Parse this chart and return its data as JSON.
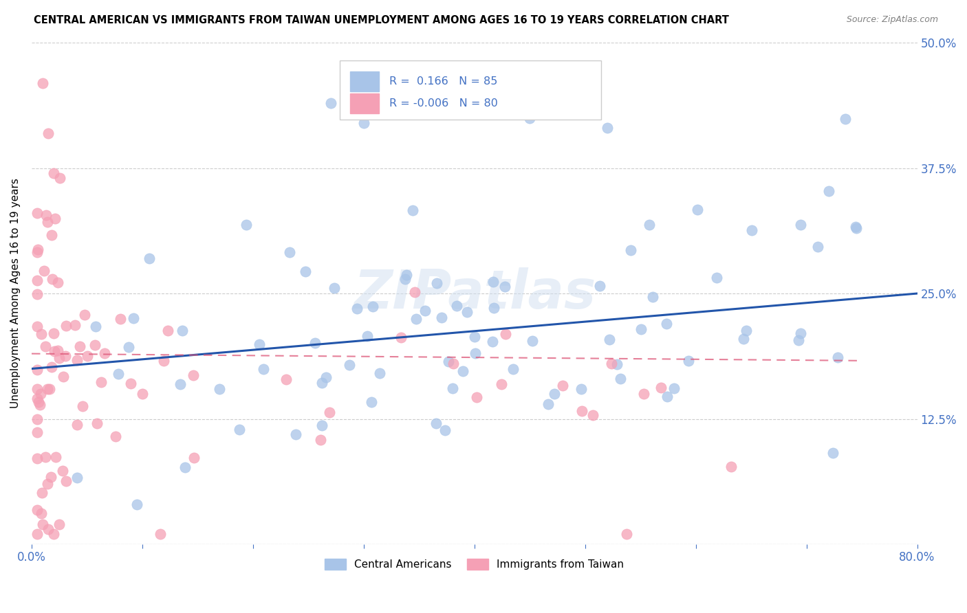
{
  "title": "CENTRAL AMERICAN VS IMMIGRANTS FROM TAIWAN UNEMPLOYMENT AMONG AGES 16 TO 19 YEARS CORRELATION CHART",
  "source_text": "Source: ZipAtlas.com",
  "ylabel": "Unemployment Among Ages 16 to 19 years",
  "xlim": [
    0.0,
    0.8
  ],
  "ylim": [
    0.0,
    0.5
  ],
  "ytick_positions": [
    0.0,
    0.125,
    0.25,
    0.375,
    0.5
  ],
  "ytick_labels": [
    "",
    "12.5%",
    "25.0%",
    "37.5%",
    "50.0%"
  ],
  "blue_color": "#a8c4e8",
  "blue_dark": "#2255aa",
  "pink_color": "#f5a0b5",
  "pink_dark": "#dd5577",
  "legend_R1": "0.166",
  "legend_N1": "85",
  "legend_R2": "-0.006",
  "legend_N2": "80",
  "legend_label1": "Central Americans",
  "legend_label2": "Immigrants from Taiwan",
  "watermark": "ZIPatlas",
  "blue_trendline_x": [
    0.0,
    0.8
  ],
  "blue_trendline_y": [
    0.175,
    0.25
  ],
  "pink_trendline_x": [
    0.0,
    0.75
  ],
  "pink_trendline_y": [
    0.19,
    0.183
  ],
  "background_color": "#ffffff",
  "grid_color": "#cccccc",
  "tick_label_color": "#4472c4"
}
